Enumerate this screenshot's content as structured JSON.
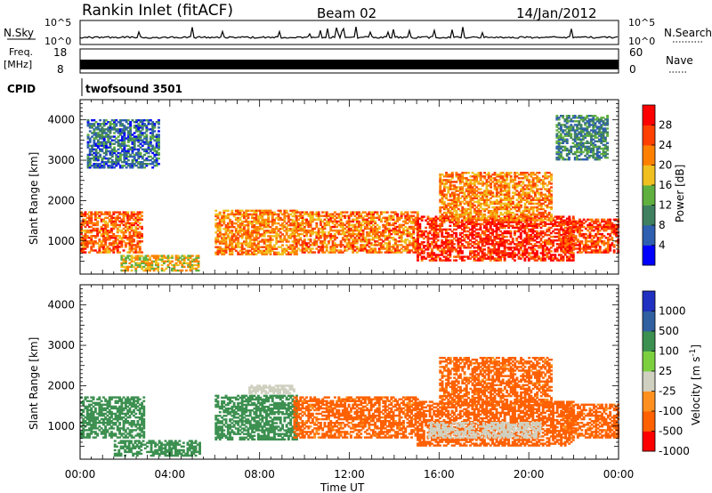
{
  "header": {
    "title": "Rankin Inlet (fitACF)",
    "beam": "Beam 02",
    "date": "14/Jan/2012"
  },
  "panels": {
    "nsky_label": "N.Sky",
    "nsearch_label": "N.Search",
    "freq_label_1": "Freq.",
    "freq_label_2": "[MHz]",
    "nave_label": "Nave",
    "cpid_label": "CPID",
    "cpid_value": "twofsound 3501",
    "nsky_ticks": [
      "10^5",
      "10^0"
    ],
    "nsearch_ticks": [
      "10^5",
      "10^0"
    ],
    "freq_ticks": [
      "18",
      "8"
    ],
    "nave_ticks": [
      "60",
      "0"
    ]
  },
  "colors": {
    "power": [
      "#0000ff",
      "#2f5fb0",
      "#3f8060",
      "#60b040",
      "#f0c020",
      "#ff8000",
      "#ff4000",
      "#ff0000"
    ],
    "velocity": [
      "#ff0000",
      "#ff6000",
      "#ff9020",
      "#d0d0c0",
      "#7cd040",
      "#3c9050",
      "#3060a0",
      "#2030c0"
    ]
  },
  "chart_data": [
    {
      "type": "heatmap",
      "title": "Power",
      "xlabel": "Time UT",
      "ylabel": "Slant Range [km]",
      "xlim": [
        "00:00",
        "24:00"
      ],
      "ylim": [
        180,
        4500
      ],
      "x_ticks": [
        "00:00",
        "04:00",
        "08:00",
        "12:00",
        "16:00",
        "20:00",
        "00:00"
      ],
      "y_ticks": [
        1000,
        2000,
        3000,
        4000
      ],
      "colorbar": {
        "label": "Power [dB]",
        "ticks": [
          4,
          8,
          12,
          16,
          20,
          24,
          28
        ],
        "range": [
          0,
          32
        ]
      },
      "regions": [
        {
          "t": [
            0.0,
            2.7
          ],
          "r": [
            700,
            1700
          ],
          "value": 24
        },
        {
          "t": [
            1.8,
            5.3
          ],
          "r": [
            250,
            650
          ],
          "value": 18
        },
        {
          "t": [
            6.0,
            9.6
          ],
          "r": [
            650,
            1750
          ],
          "value": 22
        },
        {
          "t": [
            9.5,
            15.0
          ],
          "r": [
            700,
            1700
          ],
          "value": 23
        },
        {
          "t": [
            15.0,
            22.0
          ],
          "r": [
            500,
            1600
          ],
          "value": 28
        },
        {
          "t": [
            16.0,
            21.0
          ],
          "r": [
            1500,
            2700
          ],
          "value": 22
        },
        {
          "t": [
            21.5,
            24.0
          ],
          "r": [
            700,
            1550
          ],
          "value": 26
        },
        {
          "t": [
            0.3,
            3.5
          ],
          "r": [
            2800,
            4000
          ],
          "value": 8
        },
        {
          "t": [
            21.2,
            23.5
          ],
          "r": [
            3000,
            4100
          ],
          "value": 10
        }
      ]
    },
    {
      "type": "heatmap",
      "title": "Velocity",
      "xlabel": "Time UT",
      "ylabel": "Slant Range [km]",
      "xlim": [
        "00:00",
        "24:00"
      ],
      "ylim": [
        180,
        4500
      ],
      "x_ticks": [
        "00:00",
        "04:00",
        "08:00",
        "12:00",
        "16:00",
        "20:00",
        "00:00"
      ],
      "y_ticks": [
        1000,
        2000,
        3000,
        4000
      ],
      "colorbar": {
        "label": "Velocity [m s^-1]",
        "ticks": [
          1000,
          500,
          100,
          25,
          -25,
          -100,
          -500,
          -1000
        ]
      },
      "regions": [
        {
          "t": [
            0.0,
            2.8
          ],
          "r": [
            700,
            1700
          ],
          "value": 300
        },
        {
          "t": [
            1.5,
            5.3
          ],
          "r": [
            250,
            650
          ],
          "value": 300
        },
        {
          "t": [
            6.0,
            9.6
          ],
          "r": [
            650,
            1750
          ],
          "value": 250
        },
        {
          "t": [
            9.5,
            15.0
          ],
          "r": [
            700,
            1700
          ],
          "value": -200
        },
        {
          "t": [
            15.0,
            22.0
          ],
          "r": [
            500,
            1600
          ],
          "value": -250
        },
        {
          "t": [
            16.0,
            21.0
          ],
          "r": [
            1500,
            2700
          ],
          "value": -200
        },
        {
          "t": [
            15.5,
            20.5
          ],
          "r": [
            700,
            1100
          ],
          "value": 0
        },
        {
          "t": [
            21.5,
            24.0
          ],
          "r": [
            700,
            1550
          ],
          "value": -200
        },
        {
          "t": [
            7.5,
            9.5
          ],
          "r": [
            1800,
            2000
          ],
          "value": 0
        }
      ]
    }
  ]
}
